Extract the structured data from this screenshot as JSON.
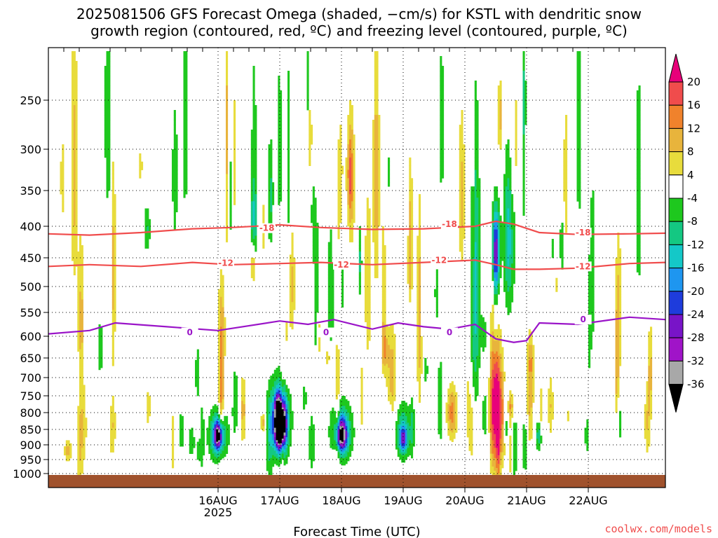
{
  "title_line1": "2025081506 GFS Forecast Omega (shaded, −cm/s) for KSTL with dendritic snow",
  "title_line2": "growth region (contoured, red, ºC) and freezing level (contoured, purple, ºC)",
  "credit": "coolwx.com/models",
  "colors": {
    "temperature_contour": "#f04c4c",
    "freezing_level_contour": "#9a14c8",
    "ground": "#a0522d",
    "grid": "#000000"
  },
  "chart_data": {
    "type": "heatmap",
    "xlabel": "Forecast Time (UTC)",
    "ylabel": "",
    "x_ticks": [
      "16AUG\n2025",
      "17AUG",
      "18AUG",
      "19AUG",
      "20AUG",
      "21AUG",
      "22AUG"
    ],
    "x_range_hours": [
      -66,
      174
    ],
    "y_ticks": [
      250,
      300,
      350,
      400,
      450,
      500,
      550,
      600,
      650,
      700,
      750,
      800,
      850,
      900,
      950,
      1000
    ],
    "y_range_hpa": [
      200,
      1025
    ],
    "colorbar": {
      "labels": [
        20,
        16,
        12,
        8,
        4,
        -4,
        -8,
        -12,
        -16,
        -20,
        -24,
        -28,
        -32,
        -36
      ],
      "bins": [
        {
          "range": [
            20,
            24
          ],
          "color": "#e8007a"
        },
        {
          "range": [
            16,
            20
          ],
          "color": "#f04c4c"
        },
        {
          "range": [
            12,
            16
          ],
          "color": "#f0822c"
        },
        {
          "range": [
            8,
            12
          ],
          "color": "#e8b43c"
        },
        {
          "range": [
            4,
            8
          ],
          "color": "#e8dc3c"
        },
        {
          "range": [
            -4,
            4
          ],
          "color": "#ffffff"
        },
        {
          "range": [
            -8,
            -4
          ],
          "color": "#1ec81e"
        },
        {
          "range": [
            -12,
            -8
          ],
          "color": "#14c882"
        },
        {
          "range": [
            -16,
            -12
          ],
          "color": "#14c8c8"
        },
        {
          "range": [
            -20,
            -16
          ],
          "color": "#1e96f0"
        },
        {
          "range": [
            -24,
            -20
          ],
          "color": "#1e3cdc"
        },
        {
          "range": [
            -28,
            -24
          ],
          "color": "#7814c8"
        },
        {
          "range": [
            -32,
            -28
          ],
          "color": "#a014c8"
        },
        {
          "range": [
            -36,
            -32
          ],
          "color": "#a8a8a8"
        },
        {
          "range": [
            -40,
            -36
          ],
          "color": "#000000"
        }
      ]
    },
    "omega_blobs": [
      {
        "t": 0,
        "p": 870,
        "dt": 3.5,
        "dp": 80,
        "v": -18
      },
      {
        "t": 0,
        "p": 870,
        "dt": 1.5,
        "dp": 40,
        "v": -26
      },
      {
        "t": 24,
        "p": 820,
        "dt": 4,
        "dp": 120,
        "v": -16
      },
      {
        "t": 24,
        "p": 830,
        "dt": 2.5,
        "dp": 80,
        "v": -28
      },
      {
        "t": 24,
        "p": 840,
        "dt": 1.5,
        "dp": 55,
        "v": -38
      },
      {
        "t": 48,
        "p": 860,
        "dt": 4,
        "dp": 90,
        "v": -18
      },
      {
        "t": 48,
        "p": 870,
        "dt": 2,
        "dp": 45,
        "v": -26
      },
      {
        "t": 72,
        "p": 860,
        "dt": 3,
        "dp": 90,
        "v": -12
      },
      {
        "t": 72,
        "p": 880,
        "dt": 1.5,
        "dp": 40,
        "v": -16
      },
      {
        "t": 91,
        "p": 800,
        "dt": 2,
        "dp": 80,
        "v": 14
      },
      {
        "t": 100,
        "p": 500,
        "dt": 1.8,
        "dp": 250,
        "v": -14
      },
      {
        "t": 108,
        "p": 780,
        "dt": 2,
        "dp": 200,
        "v": 24
      },
      {
        "t": 108,
        "p": 440,
        "dt": 1.5,
        "dp": 70,
        "v": -28
      },
      {
        "t": 113,
        "p": 780,
        "dt": 2,
        "dp": 40,
        "v": 14
      },
      {
        "t": 112,
        "p": 780,
        "dt": 1.2,
        "dp": 50,
        "v": -18
      },
      {
        "t": 113,
        "p": 420,
        "dt": 2,
        "dp": 120,
        "v": -14
      },
      {
        "t": 125,
        "p": 870,
        "dt": 1.5,
        "dp": 50,
        "v": -12
      }
    ],
    "contours": [
      {
        "name": "-18",
        "color": "#f04c4c",
        "points": [
          [
            -66,
            412
          ],
          [
            -50,
            414
          ],
          [
            -30,
            410
          ],
          [
            -10,
            404
          ],
          [
            5,
            402
          ],
          [
            24,
            398
          ],
          [
            40,
            402
          ],
          [
            60,
            405
          ],
          [
            80,
            404
          ],
          [
            100,
            400
          ],
          [
            108,
            393
          ],
          [
            115,
            397
          ],
          [
            125,
            410
          ],
          [
            140,
            413
          ],
          [
            160,
            412
          ],
          [
            174,
            411
          ]
        ],
        "labels": [
          [
            19,
            403
          ],
          [
            90,
            397
          ],
          [
            142,
            410
          ]
        ]
      },
      {
        "name": "-12",
        "color": "#f04c4c",
        "points": [
          [
            -66,
            465
          ],
          [
            -50,
            462
          ],
          [
            -30,
            465
          ],
          [
            -10,
            458
          ],
          [
            5,
            462
          ],
          [
            24,
            460
          ],
          [
            40,
            458
          ],
          [
            60,
            462
          ],
          [
            80,
            458
          ],
          [
            100,
            454
          ],
          [
            108,
            462
          ],
          [
            115,
            470
          ],
          [
            125,
            470
          ],
          [
            140,
            468
          ],
          [
            160,
            460
          ],
          [
            174,
            458
          ]
        ],
        "labels": [
          [
            3,
            459
          ],
          [
            48,
            462
          ],
          [
            86,
            454
          ],
          [
            142,
            465
          ]
        ]
      },
      {
        "name": "0",
        "color": "#9a14c8",
        "points": [
          [
            -66,
            595
          ],
          [
            -50,
            588
          ],
          [
            -40,
            572
          ],
          [
            -20,
            580
          ],
          [
            0,
            588
          ],
          [
            24,
            568
          ],
          [
            35,
            575
          ],
          [
            45,
            565
          ],
          [
            60,
            585
          ],
          [
            70,
            572
          ],
          [
            80,
            580
          ],
          [
            90,
            585
          ],
          [
            100,
            575
          ],
          [
            108,
            606
          ],
          [
            115,
            614
          ],
          [
            120,
            610
          ],
          [
            125,
            572
          ],
          [
            140,
            575
          ],
          [
            160,
            560
          ],
          [
            174,
            565
          ]
        ],
        "labels": [
          [
            -11,
            592
          ],
          [
            42,
            592
          ],
          [
            90,
            592
          ],
          [
            142,
            565
          ]
        ]
      }
    ]
  }
}
